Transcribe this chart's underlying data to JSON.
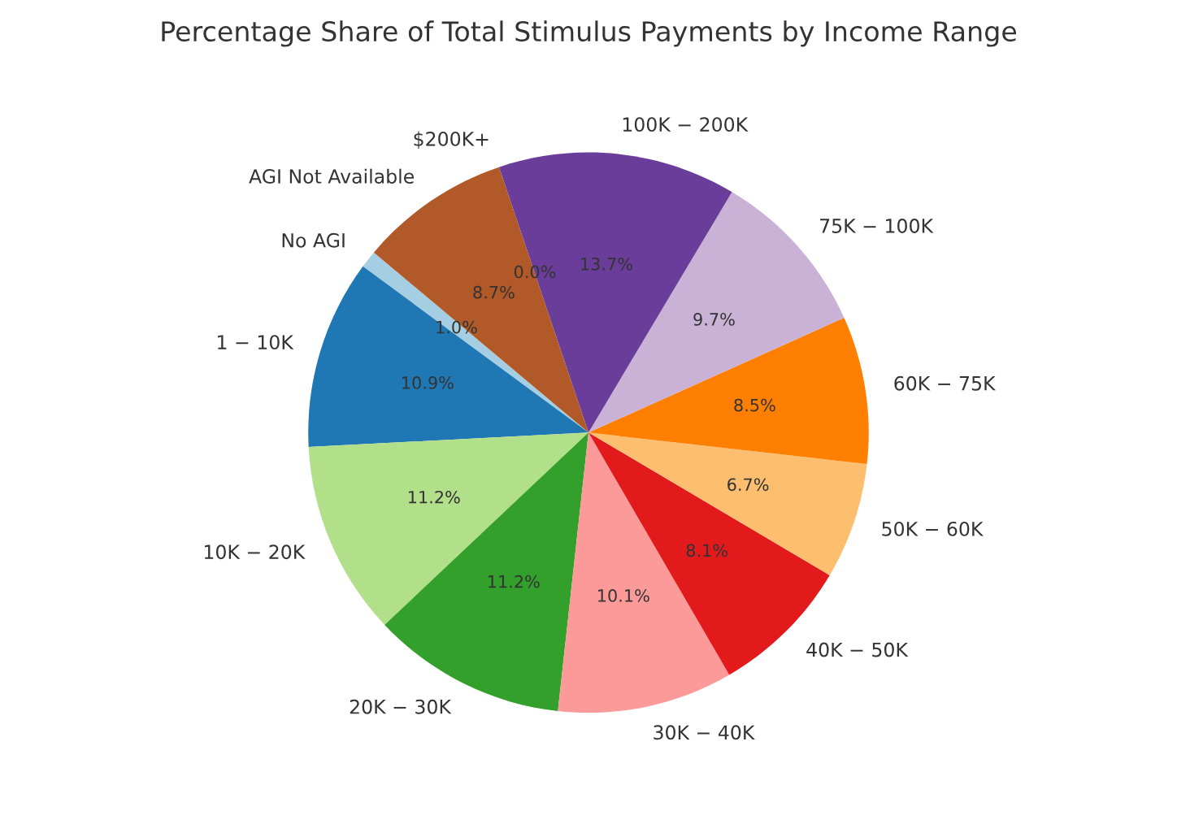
{
  "chart_data": {
    "type": "pie",
    "title": "Percentage Share of Total Stimulus Payments by Income Range",
    "categories": [
      "No AGI",
      "1 − 10K",
      "10K − 20K",
      "20K − 30K",
      "30K − 40K",
      "40K − 50K",
      "50K − 60K",
      "60K − 75K",
      "75K − 100K",
      "100K − 200K",
      "$200K+",
      "AGI Not Available"
    ],
    "values": [
      1.0,
      10.9,
      11.2,
      11.2,
      10.1,
      8.1,
      6.7,
      8.5,
      9.7,
      13.7,
      0.0,
      8.7
    ],
    "value_labels": [
      "1.0%",
      "10.9%",
      "11.2%",
      "11.2%",
      "10.1%",
      "8.1%",
      "6.7%",
      "8.5%",
      "9.7%",
      "13.7%",
      "0.0%",
      "8.7%"
    ],
    "colors": [
      "#a6cee3",
      "#1f78b4",
      "#b2df8a",
      "#33a02c",
      "#fb9a99",
      "#e31a1c",
      "#fdbf6f",
      "#ff7f00",
      "#cab2d6",
      "#6a3d9a",
      "#ffff99",
      "#b15928"
    ]
  }
}
